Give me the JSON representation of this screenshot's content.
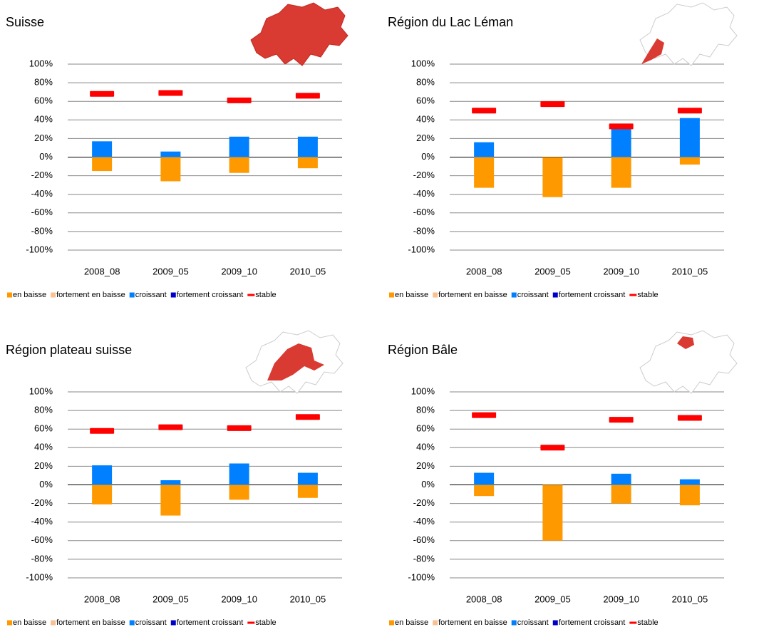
{
  "chart_data": [
    {
      "type": "bar",
      "title": "Suisse",
      "categories": [
        "2008_08",
        "2009_05",
        "2009_10",
        "2010_05"
      ],
      "ylim": [
        -100,
        100
      ],
      "yticks": [
        {
          "value": -100,
          "label": "-100%"
        },
        {
          "value": -80,
          "label": "-80%"
        },
        {
          "value": -60,
          "label": "-60%"
        },
        {
          "value": -40,
          "label": "-40%"
        },
        {
          "value": -20,
          "label": "-20%"
        },
        {
          "value": 0,
          "label": "0%"
        },
        {
          "value": 20,
          "label": "20%"
        },
        {
          "value": 40,
          "label": "40%"
        },
        {
          "value": 60,
          "label": "60%"
        },
        {
          "value": 80,
          "label": "80%"
        },
        {
          "value": 100,
          "label": "100%"
        }
      ],
      "grid": true,
      "series": [
        {
          "name": "en baisse",
          "color": "#ff9900",
          "values": [
            -15,
            -26,
            -17,
            -12
          ]
        },
        {
          "name": "fortement en baisse",
          "color": "#fac090",
          "values": [
            0,
            0,
            0,
            0
          ]
        },
        {
          "name": "croissant",
          "color": "#0080ff",
          "values": [
            17,
            6,
            22,
            22
          ]
        },
        {
          "name": "fortement croissant",
          "color": "#0000cc",
          "values": [
            0,
            0,
            0,
            0
          ]
        },
        {
          "name": "stable",
          "color": "#ff0000",
          "type": "marker",
          "values": [
            68,
            69,
            61,
            66
          ]
        }
      ]
    },
    {
      "type": "bar",
      "title": "Région du Lac Léman",
      "categories": [
        "2008_08",
        "2009_05",
        "2009_10",
        "2010_05"
      ],
      "ylim": [
        -100,
        100
      ],
      "yticks": [
        {
          "value": -100,
          "label": "-100%"
        },
        {
          "value": -80,
          "label": "-80%"
        },
        {
          "value": -60,
          "label": "-60%"
        },
        {
          "value": -40,
          "label": "-40%"
        },
        {
          "value": -20,
          "label": "-20%"
        },
        {
          "value": 0,
          "label": "0%"
        },
        {
          "value": 20,
          "label": "20%"
        },
        {
          "value": 40,
          "label": "40%"
        },
        {
          "value": 60,
          "label": "60%"
        },
        {
          "value": 80,
          "label": "80%"
        },
        {
          "value": 100,
          "label": "100%"
        }
      ],
      "grid": true,
      "series": [
        {
          "name": "en baisse",
          "color": "#ff9900",
          "values": [
            -33,
            -43,
            -33,
            -8
          ]
        },
        {
          "name": "fortement en baisse",
          "color": "#fac090",
          "values": [
            0,
            0,
            0,
            0
          ]
        },
        {
          "name": "croissant",
          "color": "#0080ff",
          "values": [
            16,
            0,
            32,
            42
          ]
        },
        {
          "name": "fortement croissant",
          "color": "#0000cc",
          "values": [
            0,
            0,
            0,
            0
          ]
        },
        {
          "name": "stable",
          "color": "#ff0000",
          "type": "marker",
          "values": [
            50,
            57,
            33,
            50
          ]
        }
      ]
    },
    {
      "type": "bar",
      "title": "Région plateau suisse",
      "categories": [
        "2008_08",
        "2009_05",
        "2009_10",
        "2010_05"
      ],
      "ylim": [
        -100,
        100
      ],
      "yticks": [
        {
          "value": -100,
          "label": "-100%"
        },
        {
          "value": -80,
          "label": "-80%"
        },
        {
          "value": -60,
          "label": "-60%"
        },
        {
          "value": -40,
          "label": "-40%"
        },
        {
          "value": -20,
          "label": "-20%"
        },
        {
          "value": 0,
          "label": "0%"
        },
        {
          "value": 20,
          "label": "20%"
        },
        {
          "value": 40,
          "label": "40%"
        },
        {
          "value": 60,
          "label": "60%"
        },
        {
          "value": 80,
          "label": "80%"
        },
        {
          "value": 100,
          "label": "100%"
        }
      ],
      "grid": true,
      "series": [
        {
          "name": "en baisse",
          "color": "#ff9900",
          "values": [
            -21,
            -33,
            -16,
            -14
          ]
        },
        {
          "name": "fortement en baisse",
          "color": "#fac090",
          "values": [
            0,
            0,
            0,
            0
          ]
        },
        {
          "name": "croissant",
          "color": "#0080ff",
          "values": [
            21,
            5,
            23,
            13
          ]
        },
        {
          "name": "fortement croissant",
          "color": "#0000cc",
          "values": [
            0,
            0,
            0,
            0
          ]
        },
        {
          "name": "stable",
          "color": "#ff0000",
          "type": "marker",
          "values": [
            58,
            62,
            61,
            73
          ]
        }
      ]
    },
    {
      "type": "bar",
      "title": "Région Bâle",
      "categories": [
        "2008_08",
        "2009_05",
        "2009_10",
        "2010_05"
      ],
      "ylim": [
        -100,
        100
      ],
      "yticks": [
        {
          "value": -100,
          "label": "-100%"
        },
        {
          "value": -80,
          "label": "-80%"
        },
        {
          "value": -60,
          "label": "-60%"
        },
        {
          "value": -40,
          "label": "-40%"
        },
        {
          "value": -20,
          "label": "-20%"
        },
        {
          "value": 0,
          "label": "0%"
        },
        {
          "value": 20,
          "label": "20%"
        },
        {
          "value": 40,
          "label": "40%"
        },
        {
          "value": 60,
          "label": "60%"
        },
        {
          "value": 80,
          "label": "80%"
        },
        {
          "value": 100,
          "label": "100%"
        }
      ],
      "grid": true,
      "series": [
        {
          "name": "en baisse",
          "color": "#ff9900",
          "values": [
            -12,
            -60,
            -20,
            -22
          ]
        },
        {
          "name": "fortement en baisse",
          "color": "#fac090",
          "values": [
            0,
            0,
            0,
            0
          ]
        },
        {
          "name": "croissant",
          "color": "#0080ff",
          "values": [
            13,
            0,
            12,
            6
          ]
        },
        {
          "name": "fortement croissant",
          "color": "#0000cc",
          "values": [
            0,
            0,
            0,
            0
          ]
        },
        {
          "name": "stable",
          "color": "#ff0000",
          "type": "marker",
          "values": [
            75,
            40,
            70,
            72
          ]
        }
      ]
    }
  ]
}
